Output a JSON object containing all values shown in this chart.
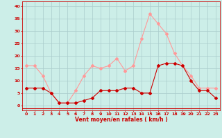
{
  "hours": [
    0,
    1,
    2,
    3,
    4,
    5,
    6,
    7,
    8,
    9,
    10,
    11,
    12,
    13,
    14,
    15,
    16,
    17,
    18,
    19,
    20,
    21,
    22,
    23
  ],
  "wind_mean": [
    7,
    7,
    7,
    5,
    1,
    1,
    1,
    2,
    3,
    6,
    6,
    6,
    7,
    7,
    5,
    5,
    16,
    17,
    17,
    16,
    10,
    6,
    6,
    3
  ],
  "wind_gust": [
    16,
    16,
    12,
    5,
    1,
    1,
    6,
    12,
    16,
    15,
    16,
    19,
    14,
    16,
    27,
    37,
    33,
    29,
    21,
    16,
    12,
    7,
    7,
    7
  ],
  "xlabel": "Vent moyen/en rafales ( km/h )",
  "ylim": [
    -2,
    42
  ],
  "xlim": [
    -0.5,
    23.5
  ],
  "yticks": [
    0,
    5,
    10,
    15,
    20,
    25,
    30,
    35,
    40
  ],
  "xticks": [
    0,
    1,
    2,
    3,
    4,
    5,
    6,
    7,
    8,
    9,
    10,
    11,
    12,
    13,
    14,
    15,
    16,
    17,
    18,
    19,
    20,
    21,
    22,
    23
  ],
  "color_mean": "#cc0000",
  "color_gust": "#ff9999",
  "bg_color": "#cceee8",
  "grid_color": "#aacccc",
  "axis_color": "#cc0000",
  "label_color": "#cc0000"
}
